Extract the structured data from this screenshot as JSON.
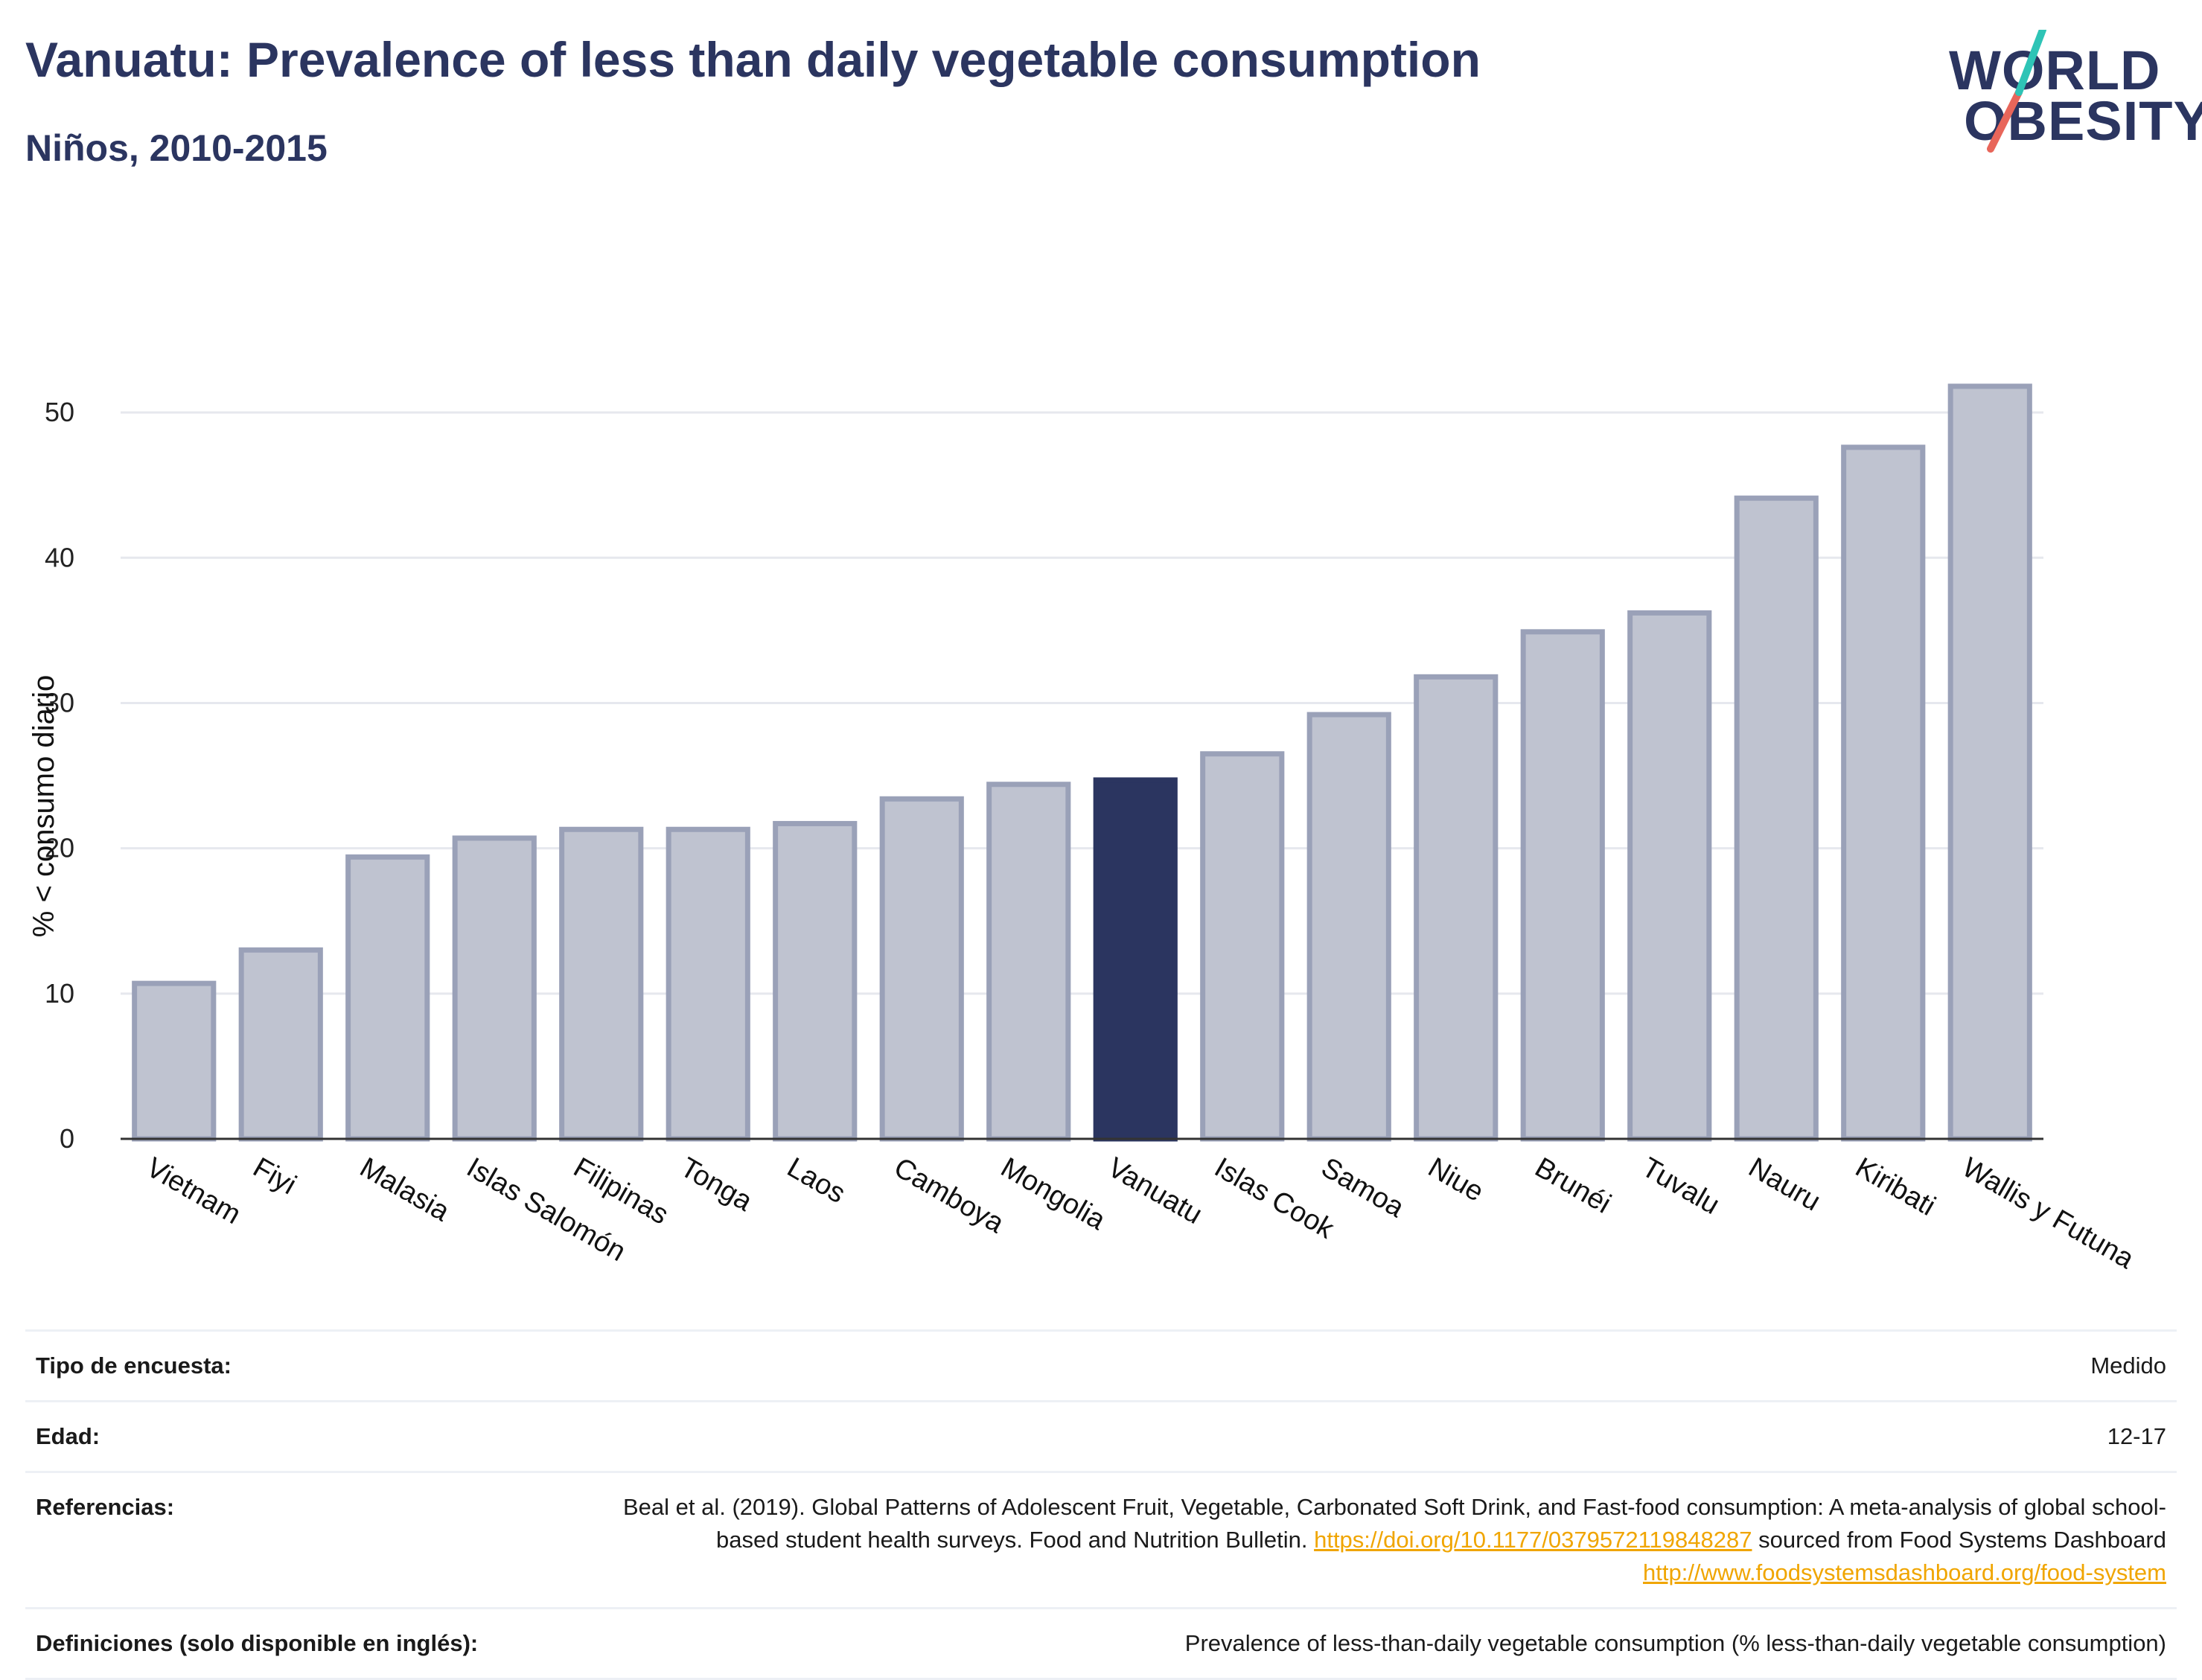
{
  "header": {
    "title": "Vanuatu: Prevalence of less than daily vegetable consumption",
    "subtitle": "Niños, 2010-2015"
  },
  "logo": {
    "line1": "WORLD",
    "line2": "OBESITY"
  },
  "colors": {
    "highlight": "#2b3560",
    "bar_fill": "#bfc3d0",
    "bar_stroke": "#9aa1b8",
    "logo_teal": "#2ec4b6",
    "logo_red": "#e8665a",
    "link": "#f0a500"
  },
  "chart_data": {
    "type": "bar",
    "ylabel": "% < consumo diario",
    "ylim": [
      0,
      54
    ],
    "yticks": [
      0,
      10,
      20,
      30,
      40,
      50
    ],
    "grid": true,
    "highlight": "Vanuatu",
    "categories": [
      "Vietnam",
      "Fiyi",
      "Malasia",
      "Islas Salomón",
      "Filipinas",
      "Tonga",
      "Laos",
      "Camboya",
      "Mongolia",
      "Vanuatu",
      "Islas Cook",
      "Samoa",
      "Niue",
      "Brunéi",
      "Tuvalu",
      "Nauru",
      "Kiribati",
      "Wallis y Futuna"
    ],
    "values": [
      10.7,
      13.0,
      19.4,
      20.7,
      21.3,
      21.3,
      21.7,
      23.4,
      24.4,
      24.7,
      26.5,
      29.2,
      31.8,
      34.9,
      36.2,
      44.1,
      47.6,
      51.8
    ]
  },
  "info": {
    "survey_type": {
      "label": "Tipo de encuesta:",
      "value": "Medido"
    },
    "age": {
      "label": "Edad:",
      "value": "12-17"
    },
    "references": {
      "label": "Referencias:",
      "text1": "Beal et al. (2019). Global Patterns of Adolescent Fruit, Vegetable, Carbonated Soft Drink, and Fast-food consumption: A meta-analysis of global school-based student health surveys. Food and Nutrition Bulletin.",
      "link1": "https://doi.org/10.1177/0379572119848287",
      "text2": "sourced from Food Systems Dashboard",
      "link2": "http://www.foodsystemsdashboard.org/food-system"
    },
    "definitions": {
      "label": "Definiciones (solo disponible en inglés):",
      "value": "Prevalence of less-than-daily vegetable consumption (% less-than-daily vegetable consumption)"
    }
  }
}
